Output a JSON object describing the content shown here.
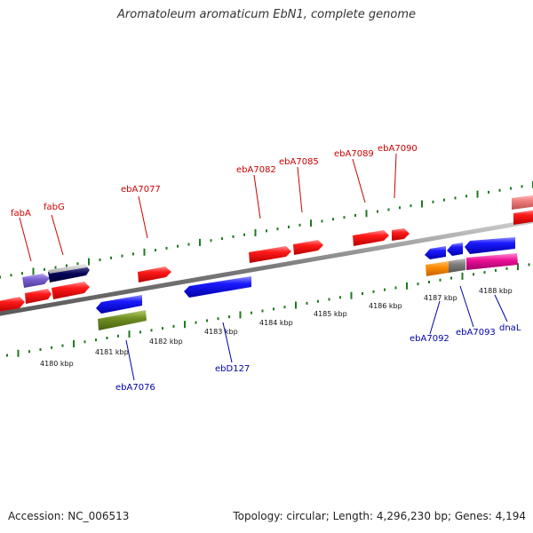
{
  "title": "Aromatoleum aromaticum EbN1, complete genome",
  "accession": "Accession: NC_006513",
  "summary": "Topology: circular; Length: 4,296,230 bp; Genes: 4,194",
  "colors": {
    "backbone": "#8a8a8a",
    "forward_label": "#cc0000",
    "reverse_label": "#0000aa",
    "tick": "#1e7a1e"
  },
  "scale_labels": [
    "4180 kbp",
    "4181 kbp",
    "4182 kbp",
    "4183 kbp",
    "4184 kbp",
    "4185 kbp",
    "4186 kbp",
    "4187 kbp",
    "4188 kbp"
  ],
  "forward_gene_labels": [
    "fabA",
    "fabG",
    "ebA7077",
    "ebA7082",
    "ebA7085",
    "ebA7089",
    "ebA7090"
  ],
  "reverse_gene_labels": [
    "ebA7076",
    "ebD127",
    "ebA7092",
    "ebA7093",
    "dnaL"
  ],
  "feature_colors": {
    "cds_forward": "#ee1111",
    "cds_reverse": "#1111dd",
    "rRNA_like_purple": "#7a5fd0",
    "olive": "#6f8f22",
    "orange": "#ff8c00",
    "grey": "#808080",
    "magenta": "#ee1199",
    "salmon": "#f08080"
  }
}
